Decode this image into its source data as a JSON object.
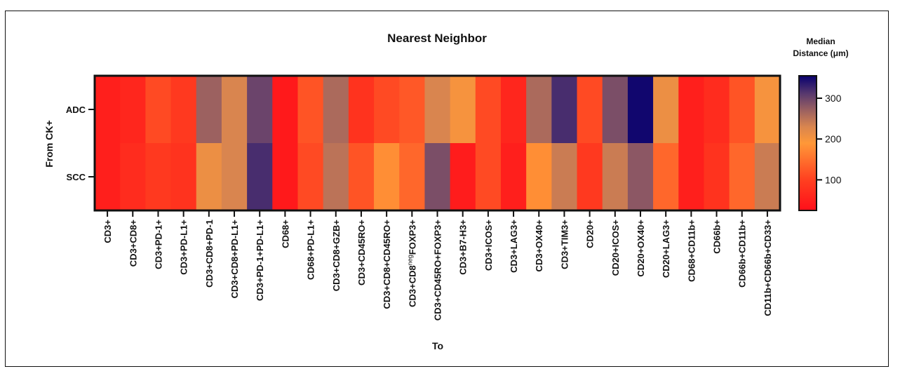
{
  "chart_data": {
    "type": "heatmap",
    "title": "Nearest Neighbor",
    "xlabel": "To",
    "ylabel": "From CK+",
    "rows": [
      "ADC",
      "SCC"
    ],
    "columns": [
      "CD3+",
      "CD3+CD8+",
      "CD3+PD-1+",
      "CD3+PD-L1+",
      "CD3+CD8+PD-1",
      "CD3+CD8+PD-L1+",
      "CD3+PD-1+PD-L1+",
      "CD68+",
      "CD68+PD-L1+",
      "CD3+CD8+GZB+",
      "CD3+CD45RO+",
      "CD3+CD8+CD45RO+",
      "CD3+CD8negFOXP3+",
      "CD3+CD45RO+FOXP3+",
      "CD3+B7-H3+",
      "CD3+ICOS+",
      "CD3+LAG3+",
      "CD3+OX40+",
      "CD3+TIM3+",
      "CD20+",
      "CD20+ICOS+",
      "CD20+OX40+",
      "CD20+LAG3+",
      "CD68+CD11b+",
      "CD66b+",
      "CD66b+CD11b+",
      "CD11b+CD66b+CD33+"
    ],
    "column_label_parts": {
      "12": {
        "base": "CD3+CD8",
        "sup": "neg",
        "rest": "FOXP3+"
      }
    },
    "values": [
      [
        50,
        60,
        110,
        90,
        270,
        230,
        300,
        40,
        120,
        260,
        80,
        110,
        125,
        230,
        200,
        110,
        60,
        260,
        320,
        110,
        290,
        350,
        210,
        50,
        70,
        120,
        200
      ],
      [
        50,
        70,
        90,
        80,
        210,
        230,
        320,
        40,
        110,
        250,
        120,
        180,
        140,
        290,
        45,
        110,
        50,
        180,
        240,
        90,
        240,
        280,
        140,
        50,
        80,
        140,
        240
      ]
    ],
    "colorbar": {
      "title_line1": "Median",
      "title_line2": "Distance (μm)",
      "ticks": [
        100,
        200,
        300
      ],
      "range": [
        25,
        355
      ],
      "stops": [
        {
          "value": 25,
          "color": "#ff0f1a"
        },
        {
          "value": 100,
          "color": "#ff4020"
        },
        {
          "value": 190,
          "color": "#ff9838"
        },
        {
          "value": 230,
          "color": "#d9854f"
        },
        {
          "value": 270,
          "color": "#9c6160"
        },
        {
          "value": 310,
          "color": "#5a3a6e"
        },
        {
          "value": 355,
          "color": "#08006e"
        }
      ]
    }
  }
}
